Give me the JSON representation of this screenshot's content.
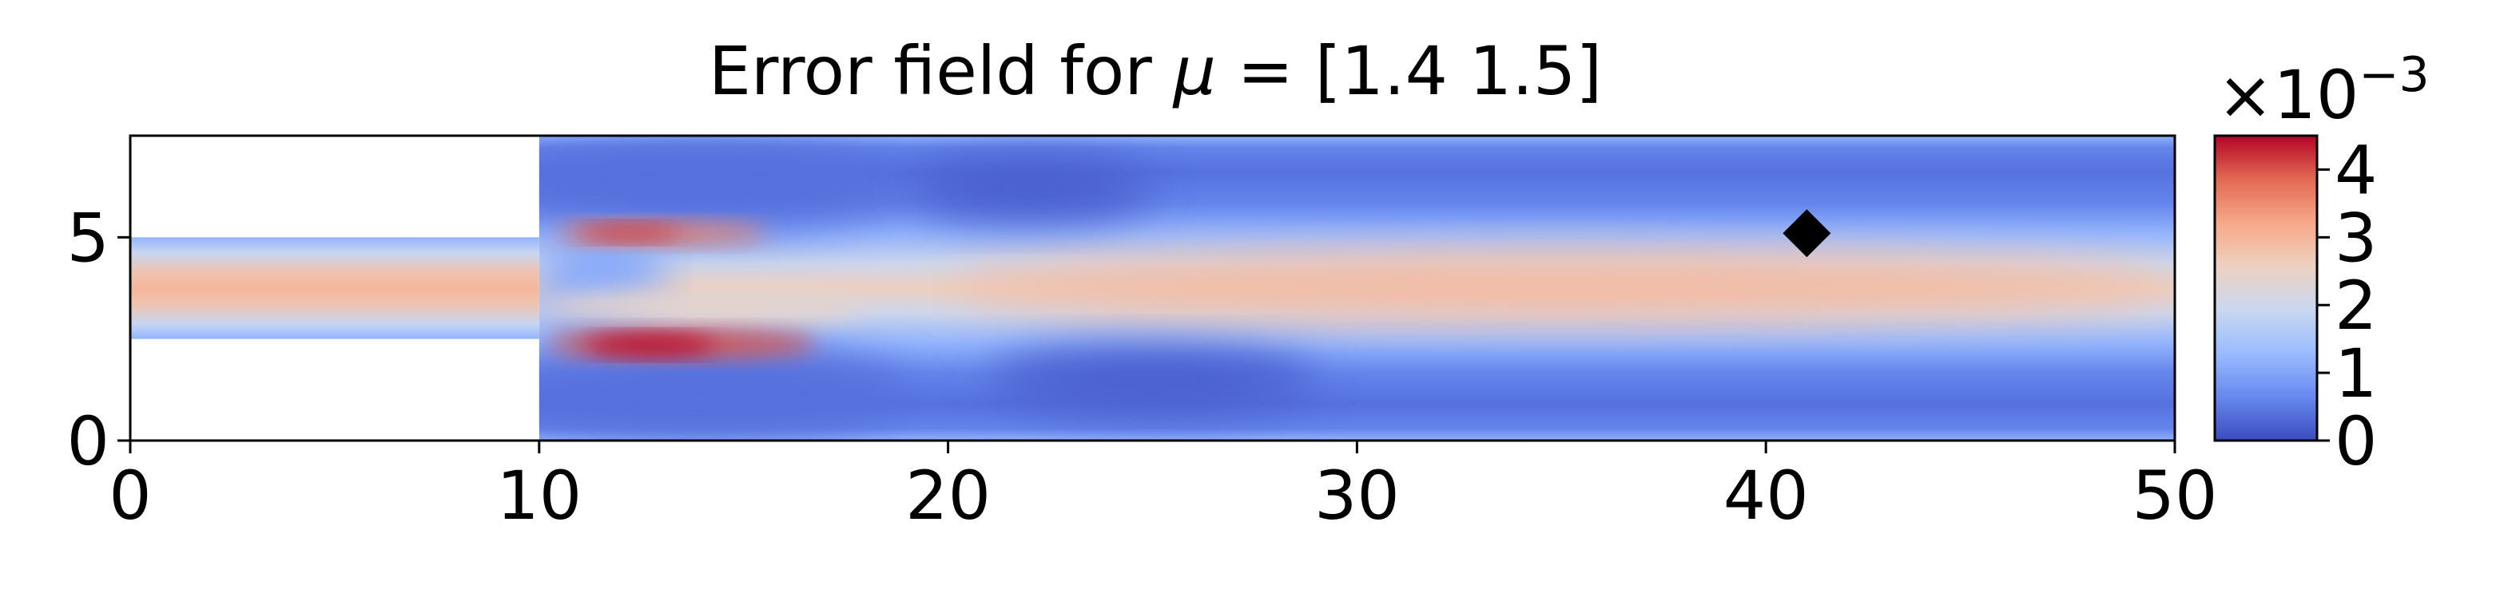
{
  "chart_data": {
    "type": "heatmap",
    "title_prefix": "Error field for ",
    "title_symbol": "μ",
    "title_suffix": " = [1.4 1.5]",
    "xlim": [
      0,
      50
    ],
    "ylim": [
      0,
      7.5
    ],
    "x_ticks": [
      0,
      10,
      20,
      30,
      40,
      50
    ],
    "y_ticks": [
      0,
      5
    ],
    "domain": {
      "inlet_channel": {
        "x": [
          0,
          10
        ],
        "y": [
          2.5,
          5.0
        ]
      },
      "expansion": {
        "x": [
          10,
          50
        ],
        "y": [
          0,
          7.5
        ]
      }
    },
    "marker": {
      "shape": "diamond",
      "x": 41,
      "y": 5.1,
      "color": "#000000"
    },
    "colorbar": {
      "min": 0,
      "max": 0.0045,
      "tick_values": [
        0,
        1,
        2,
        3,
        4
      ],
      "multiplier_prefix": "×10",
      "multiplier_exponent": "−3",
      "colormap": "coolwarm",
      "stops": [
        "#3b4cc0",
        "#6788ee",
        "#9abbff",
        "#c9d7f0",
        "#edd1c2",
        "#f7a889",
        "#e26952",
        "#b40426"
      ]
    },
    "field_description_values": {
      "centerline_max": 0.003,
      "jet_shear_max": 0.0045,
      "wall_min": 0.0002
    }
  }
}
